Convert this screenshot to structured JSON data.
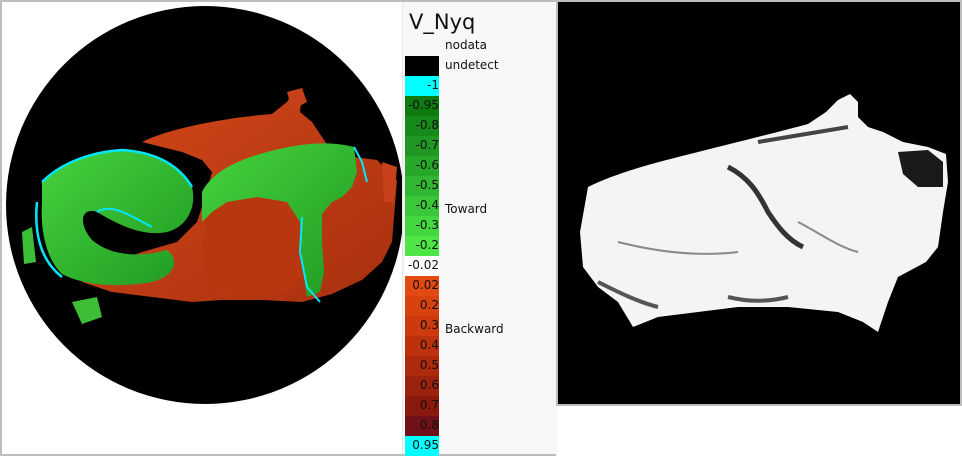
{
  "legend": {
    "title": "V_Nyq",
    "special": [
      {
        "label": "nodata",
        "color": "#f7f7f7"
      },
      {
        "label": "undetect",
        "color": "#000000"
      }
    ],
    "scale": [
      {
        "label": "-1",
        "color": "#00ffff"
      },
      {
        "label": "-0.95",
        "color": "#0e7a10"
      },
      {
        "label": "-0.8",
        "color": "#17881a"
      },
      {
        "label": "-0.7",
        "color": "#1f9722"
      },
      {
        "label": "-0.6",
        "color": "#28a82a"
      },
      {
        "label": "-0.5",
        "color": "#31b832"
      },
      {
        "label": "-0.4",
        "color": "#3ac83a"
      },
      {
        "label": "-0.3",
        "color": "#43d740"
      },
      {
        "label": "-0.2",
        "color": "#4ee646"
      },
      {
        "label": "-0.02",
        "color": "#ffffff"
      },
      {
        "label": "0.02",
        "color": "#e24a12"
      },
      {
        "label": "0.2",
        "color": "#d8420f"
      },
      {
        "label": "0.3",
        "color": "#cc3a0e"
      },
      {
        "label": "0.4",
        "color": "#bd320d"
      },
      {
        "label": "0.5",
        "color": "#ad2a0d"
      },
      {
        "label": "0.6",
        "color": "#9c220d"
      },
      {
        "label": "0.7",
        "color": "#8a1a0d"
      },
      {
        "label": "0.8",
        "color": "#70101a"
      },
      {
        "label": "0.95",
        "color": "#00ffff"
      }
    ],
    "toward_label": "Toward",
    "backward_label": "Backward"
  },
  "colors": {
    "toward": "#3cbf36",
    "backward": "#c6401a",
    "edge": "#00e6ff",
    "background": "#000000"
  }
}
